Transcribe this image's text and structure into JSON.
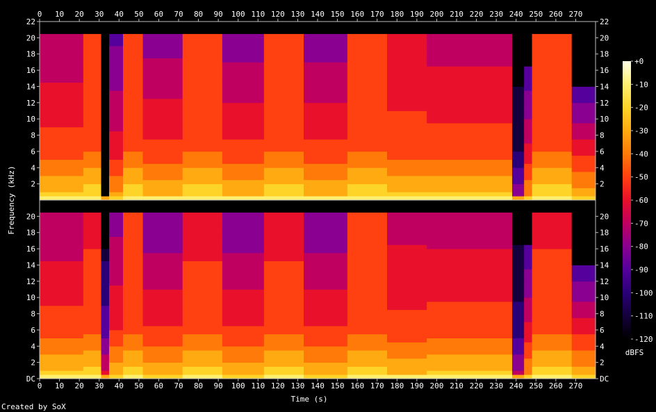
{
  "chart_data": {
    "type": "heatmap",
    "title": "",
    "xlabel": "Time (s)",
    "ylabel": "Frequency (kHz)",
    "credit": "Created by SoX",
    "xlim": [
      0,
      280
    ],
    "ylim": [
      0,
      22
    ],
    "x_ticks": [
      "0",
      "10",
      "20",
      "30",
      "40",
      "50",
      "60",
      "70",
      "80",
      "90",
      "100",
      "110",
      "120",
      "130",
      "140",
      "150",
      "160",
      "170",
      "180",
      "190",
      "200",
      "210",
      "220",
      "230",
      "240",
      "250",
      "260",
      "270"
    ],
    "y_ticks_top": [
      "2",
      "4",
      "6",
      "8",
      "10",
      "12",
      "14",
      "16",
      "18",
      "20",
      "22"
    ],
    "y_ticks_bottom": [
      "DC",
      "2",
      "4",
      "6",
      "8",
      "10",
      "12",
      "14",
      "16",
      "18",
      "20"
    ],
    "colorbar": {
      "label": "dBFS",
      "range": [
        -120,
        0
      ],
      "ticks": [
        "+0",
        "-10",
        "-20",
        "-30",
        "-40",
        "-50",
        "-60",
        "-70",
        "-80",
        "-90",
        "-100",
        "-110",
        "-120"
      ],
      "colors": [
        "#000000",
        "#14003c",
        "#2a0078",
        "#55009c",
        "#8a0090",
        "#c00060",
        "#e8102a",
        "#ff4010",
        "#ff7a08",
        "#ffaa10",
        "#ffd428",
        "#fff070",
        "#ffffe8"
      ]
    },
    "channels": [
      {
        "segments": [
          {
            "t0": 0,
            "t1": 22,
            "top_db": -75,
            "mid_db": -50,
            "cutoff_khz": 20.3
          },
          {
            "t0": 22,
            "t1": 31,
            "top_db": -48,
            "mid_db": -46,
            "cutoff_khz": 20.3
          },
          {
            "t0": 31,
            "t1": 35,
            "top_db": -118,
            "mid_db": -118,
            "cutoff_khz": 0.3
          },
          {
            "t0": 35,
            "t1": 42,
            "top_db": -88,
            "mid_db": -60,
            "cutoff_khz": 20.3
          },
          {
            "t0": 42,
            "t1": 52,
            "top_db": -48,
            "mid_db": -46,
            "cutoff_khz": 20.3
          },
          {
            "t0": 52,
            "t1": 72,
            "top_db": -80,
            "mid_db": -52,
            "cutoff_khz": 20.3
          },
          {
            "t0": 72,
            "t1": 92,
            "top_db": -48,
            "mid_db": -46,
            "cutoff_khz": 20.3
          },
          {
            "t0": 92,
            "t1": 113,
            "top_db": -82,
            "mid_db": -52,
            "cutoff_khz": 20.3
          },
          {
            "t0": 113,
            "t1": 133,
            "top_db": -48,
            "mid_db": -46,
            "cutoff_khz": 20.3
          },
          {
            "t0": 133,
            "t1": 155,
            "top_db": -82,
            "mid_db": -52,
            "cutoff_khz": 20.3
          },
          {
            "t0": 155,
            "t1": 175,
            "top_db": -48,
            "mid_db": -46,
            "cutoff_khz": 20.3
          },
          {
            "t0": 175,
            "t1": 195,
            "top_db": -65,
            "mid_db": -50,
            "cutoff_khz": 20.3
          },
          {
            "t0": 195,
            "t1": 238,
            "top_db": -70,
            "mid_db": -50,
            "cutoff_khz": 20.3
          },
          {
            "t0": 238,
            "t1": 244,
            "top_db": -118,
            "mid_db": -105,
            "cutoff_khz": 16.5
          },
          {
            "t0": 244,
            "t1": 248,
            "top_db": -95,
            "mid_db": -62,
            "cutoff_khz": 16.5
          },
          {
            "t0": 248,
            "t1": 268,
            "top_db": -48,
            "mid_db": -46,
            "cutoff_khz": 20.3
          },
          {
            "t0": 268,
            "t1": 280,
            "top_db": -95,
            "mid_db": -58,
            "cutoff_khz": 14
          }
        ]
      },
      {
        "segments": [
          {
            "t0": 0,
            "t1": 22,
            "top_db": -75,
            "mid_db": -50,
            "cutoff_khz": 20.3
          },
          {
            "t0": 22,
            "t1": 31,
            "top_db": -58,
            "mid_db": -48,
            "cutoff_khz": 20.3
          },
          {
            "t0": 31,
            "t1": 35,
            "top_db": -108,
            "mid_db": -90,
            "cutoff_khz": 16
          },
          {
            "t0": 35,
            "t1": 42,
            "top_db": -80,
            "mid_db": -56,
            "cutoff_khz": 20.3
          },
          {
            "t0": 42,
            "t1": 52,
            "top_db": -55,
            "mid_db": -48,
            "cutoff_khz": 20.3
          },
          {
            "t0": 52,
            "t1": 72,
            "top_db": -85,
            "mid_db": -54,
            "cutoff_khz": 20.3
          },
          {
            "t0": 72,
            "t1": 92,
            "top_db": -60,
            "mid_db": -48,
            "cutoff_khz": 20.3
          },
          {
            "t0": 92,
            "t1": 113,
            "top_db": -85,
            "mid_db": -54,
            "cutoff_khz": 20.3
          },
          {
            "t0": 113,
            "t1": 133,
            "top_db": -60,
            "mid_db": -48,
            "cutoff_khz": 20.3
          },
          {
            "t0": 133,
            "t1": 155,
            "top_db": -85,
            "mid_db": -54,
            "cutoff_khz": 20.3
          },
          {
            "t0": 155,
            "t1": 175,
            "top_db": -55,
            "mid_db": -48,
            "cutoff_khz": 20.3
          },
          {
            "t0": 175,
            "t1": 195,
            "top_db": -70,
            "mid_db": -52,
            "cutoff_khz": 20.3
          },
          {
            "t0": 195,
            "t1": 238,
            "top_db": -72,
            "mid_db": -50,
            "cutoff_khz": 20.3
          },
          {
            "t0": 238,
            "t1": 244,
            "top_db": -115,
            "mid_db": -100,
            "cutoff_khz": 16.5
          },
          {
            "t0": 244,
            "t1": 248,
            "top_db": -95,
            "mid_db": -62,
            "cutoff_khz": 16.5
          },
          {
            "t0": 248,
            "t1": 268,
            "top_db": -58,
            "mid_db": -48,
            "cutoff_khz": 20.3
          },
          {
            "t0": 268,
            "t1": 280,
            "top_db": -95,
            "mid_db": -58,
            "cutoff_khz": 14
          }
        ]
      }
    ]
  }
}
